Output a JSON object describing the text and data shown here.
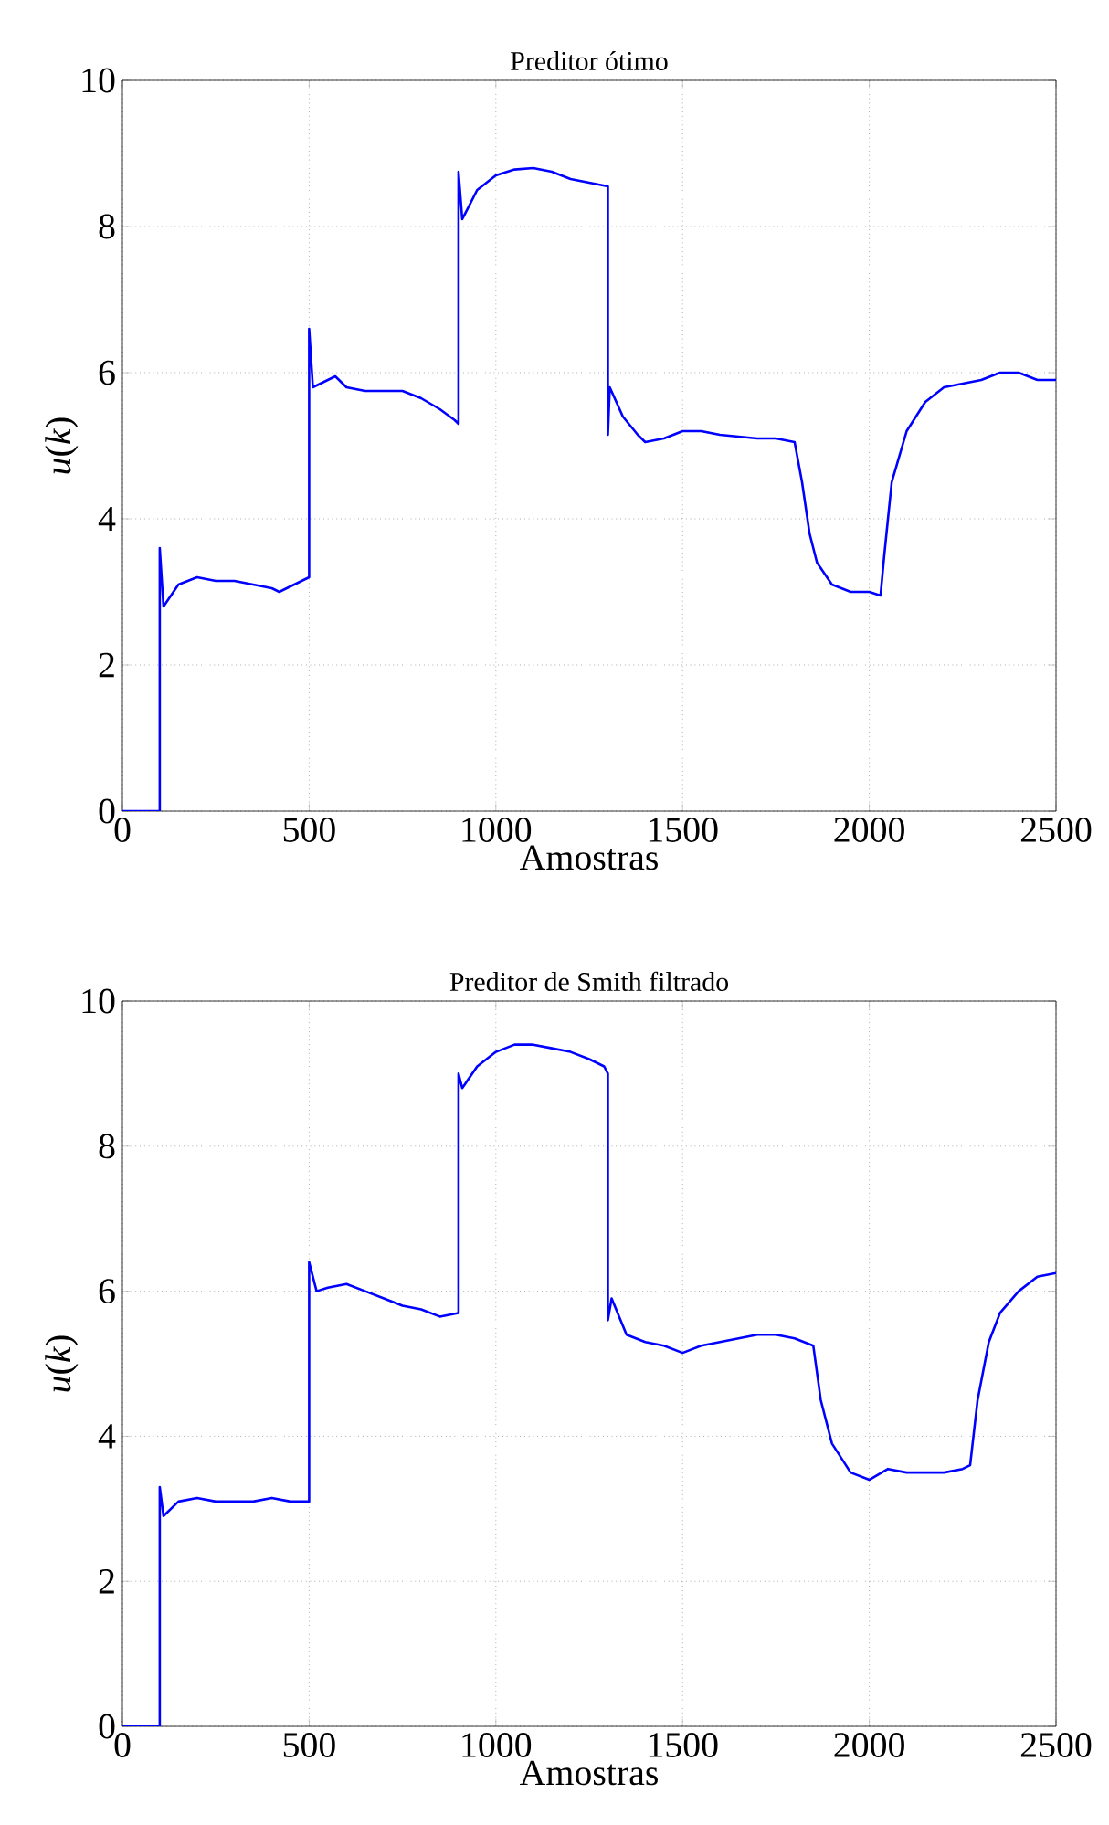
{
  "chart_data": [
    {
      "type": "line",
      "title": "Preditor ótimo",
      "xlabel": "Amostras",
      "ylabel": "*u*(*k*)",
      "xlim": [
        0,
        2500
      ],
      "ylim": [
        0,
        10
      ],
      "xticks": [
        0,
        500,
        1000,
        1500,
        2000,
        2500
      ],
      "yticks": [
        0,
        2,
        4,
        6,
        8,
        10
      ],
      "grid": true,
      "series": [
        {
          "color": "#0000ff",
          "x": [
            0,
            100,
            100,
            110,
            150,
            200,
            250,
            300,
            350,
            400,
            420,
            460,
            500,
            500,
            510,
            550,
            570,
            600,
            650,
            700,
            750,
            800,
            850,
            890,
            900,
            900,
            910,
            950,
            1000,
            1050,
            1100,
            1150,
            1200,
            1250,
            1300,
            1300,
            1305,
            1340,
            1380,
            1400,
            1450,
            1500,
            1550,
            1600,
            1700,
            1750,
            1800,
            1820,
            1840,
            1860,
            1900,
            1950,
            2000,
            2030,
            2040,
            2060,
            2100,
            2150,
            2200,
            2250,
            2300,
            2350,
            2400,
            2450,
            2500
          ],
          "values": [
            0,
            0,
            3.6,
            2.8,
            3.1,
            3.2,
            3.15,
            3.15,
            3.1,
            3.05,
            3.0,
            3.1,
            3.2,
            6.6,
            5.8,
            5.9,
            5.95,
            5.8,
            5.75,
            5.75,
            5.75,
            5.65,
            5.5,
            5.35,
            5.3,
            8.75,
            8.1,
            8.5,
            8.7,
            8.78,
            8.8,
            8.75,
            8.65,
            8.6,
            8.55,
            5.15,
            5.8,
            5.4,
            5.15,
            5.05,
            5.1,
            5.2,
            5.2,
            5.15,
            5.1,
            5.1,
            5.05,
            4.5,
            3.8,
            3.4,
            3.1,
            3.0,
            3.0,
            2.95,
            3.5,
            4.5,
            5.2,
            5.6,
            5.8,
            5.85,
            5.9,
            6.0,
            6.0,
            5.9,
            5.9
          ]
        }
      ]
    },
    {
      "type": "line",
      "title": "Preditor de Smith filtrado",
      "xlabel": "Amostras",
      "ylabel": "*u*(*k*)",
      "xlim": [
        0,
        2500
      ],
      "ylim": [
        0,
        10
      ],
      "xticks": [
        0,
        500,
        1000,
        1500,
        2000,
        2500
      ],
      "yticks": [
        0,
        2,
        4,
        6,
        8,
        10
      ],
      "grid": true,
      "series": [
        {
          "color": "#0000ff",
          "x": [
            0,
            100,
            100,
            110,
            150,
            200,
            250,
            300,
            350,
            400,
            450,
            500,
            500,
            520,
            550,
            600,
            650,
            700,
            750,
            800,
            850,
            900,
            900,
            910,
            950,
            1000,
            1050,
            1100,
            1150,
            1200,
            1250,
            1290,
            1300,
            1300,
            1310,
            1350,
            1400,
            1450,
            1500,
            1550,
            1600,
            1700,
            1750,
            1800,
            1850,
            1870,
            1900,
            1950,
            2000,
            2050,
            2100,
            2150,
            2200,
            2250,
            2270,
            2290,
            2320,
            2350,
            2400,
            2450,
            2500
          ],
          "values": [
            0,
            0,
            3.3,
            2.9,
            3.1,
            3.15,
            3.1,
            3.1,
            3.1,
            3.15,
            3.1,
            3.1,
            6.4,
            6.0,
            6.05,
            6.1,
            6.0,
            5.9,
            5.8,
            5.75,
            5.65,
            5.7,
            9.0,
            8.8,
            9.1,
            9.3,
            9.4,
            9.4,
            9.35,
            9.3,
            9.2,
            9.1,
            9.0,
            5.6,
            5.9,
            5.4,
            5.3,
            5.25,
            5.15,
            5.25,
            5.3,
            5.4,
            5.4,
            5.35,
            5.25,
            4.5,
            3.9,
            3.5,
            3.4,
            3.55,
            3.5,
            3.5,
            3.5,
            3.55,
            3.6,
            4.5,
            5.3,
            5.7,
            6.0,
            6.2,
            6.25
          ]
        }
      ]
    }
  ]
}
